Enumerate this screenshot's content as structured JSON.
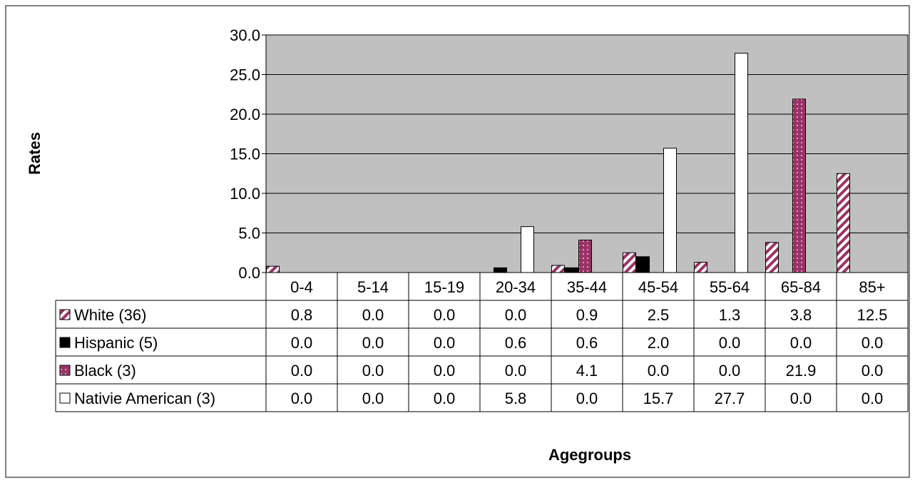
{
  "chart_data": {
    "type": "bar",
    "title": "",
    "xlabel": "Agegroups",
    "ylabel": "Rates",
    "ylim": [
      0,
      30
    ],
    "yticks": [
      "0.0",
      "5.0",
      "10.0",
      "15.0",
      "20.0",
      "25.0",
      "30.0"
    ],
    "grid": true,
    "legend": "data-table-left",
    "categories": [
      "0-4",
      "5-14",
      "15-19",
      "20-34",
      "35-44",
      "45-54",
      "55-64",
      "65-84",
      "85+"
    ],
    "series": [
      {
        "name": "White (36)",
        "pattern": "diagonal-stripes",
        "color": "#993366",
        "values": [
          0.8,
          0.0,
          0.0,
          0.0,
          0.9,
          2.5,
          1.3,
          3.8,
          12.5
        ],
        "labels": [
          "0.8",
          "0.0",
          "0.0",
          "0.0",
          "0.9",
          "2.5",
          "1.3",
          "3.8",
          "12.5"
        ]
      },
      {
        "name": "Hispanic (5)",
        "pattern": "solid",
        "color": "#000000",
        "values": [
          0.0,
          0.0,
          0.0,
          0.6,
          0.6,
          2.0,
          0.0,
          0.0,
          0.0
        ],
        "labels": [
          "0.0",
          "0.0",
          "0.0",
          "0.6",
          "0.6",
          "2.0",
          "0.0",
          "0.0",
          "0.0"
        ]
      },
      {
        "name": "Black (3)",
        "pattern": "dotted",
        "color": "#993366",
        "values": [
          0.0,
          0.0,
          0.0,
          0.0,
          4.1,
          0.0,
          0.0,
          21.9,
          0.0
        ],
        "labels": [
          "0.0",
          "0.0",
          "0.0",
          "0.0",
          "4.1",
          "0.0",
          "0.0",
          "21.9",
          "0.0"
        ]
      },
      {
        "name": "Nativie American (3)",
        "pattern": "none",
        "color": "#ffffff",
        "values": [
          0.0,
          0.0,
          0.0,
          5.8,
          0.0,
          15.7,
          27.7,
          0.0,
          0.0
        ],
        "labels": [
          "0.0",
          "0.0",
          "0.0",
          "5.8",
          "0.0",
          "15.7",
          "27.7",
          "0.0",
          "0.0"
        ]
      }
    ],
    "colors": {
      "plot_background": "#c0c0c0",
      "gridline": "#000000",
      "border": "#000000"
    }
  }
}
